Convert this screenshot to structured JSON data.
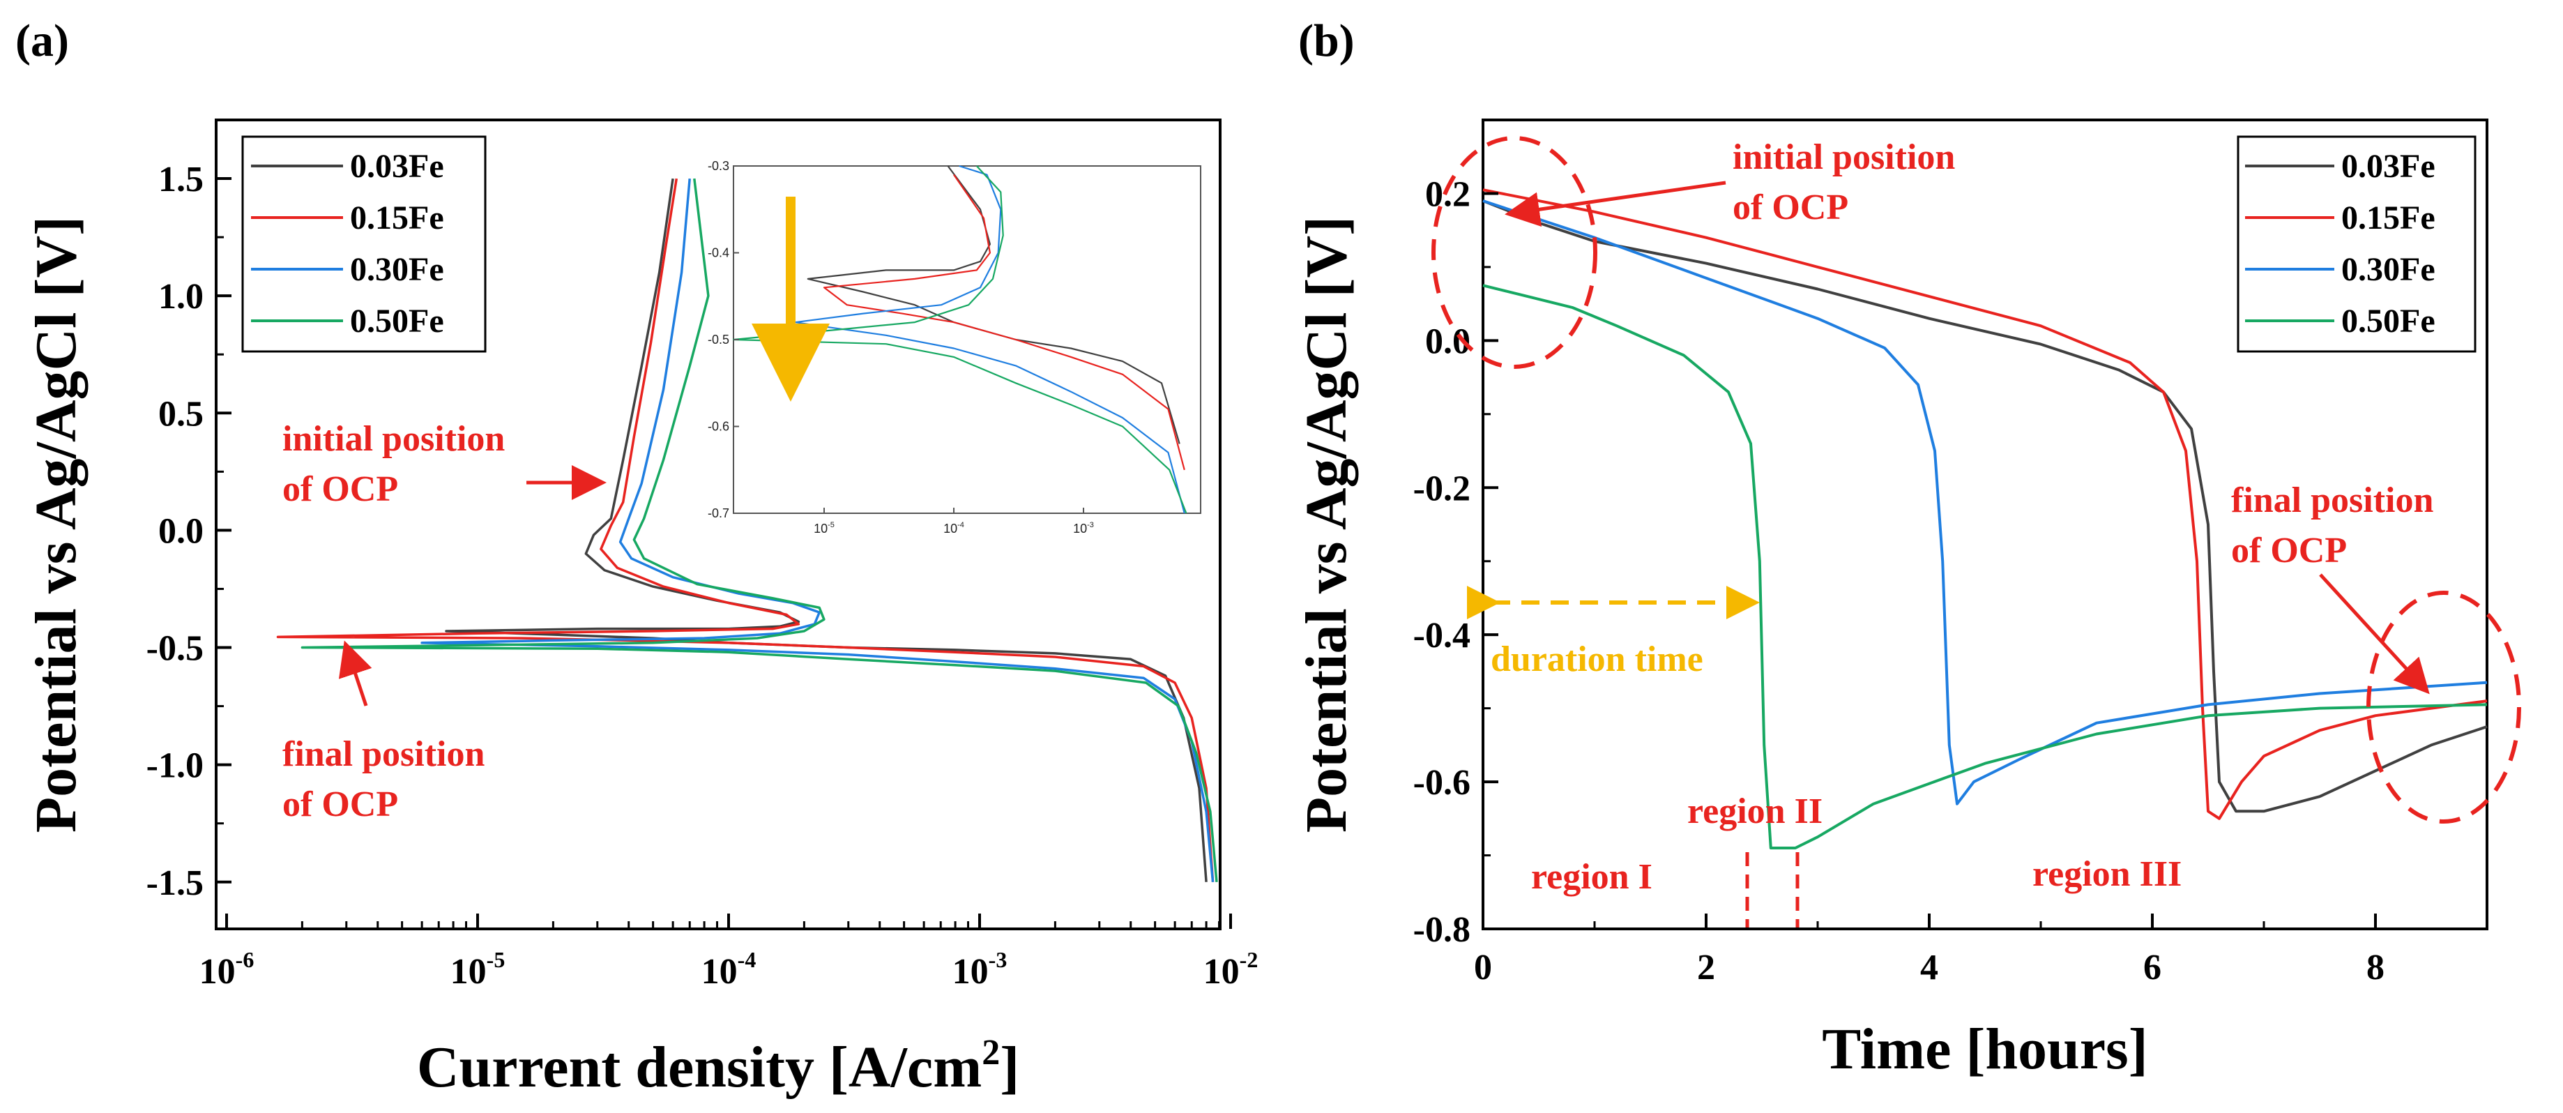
{
  "chart_data": [
    {
      "panel": "(a)",
      "type": "line",
      "xlabel": "Current density [A/cm2]",
      "ylabel": "Potential vs Ag/AgCl [V]",
      "xscale": "log",
      "xlim": [
        1e-06,
        0.01
      ],
      "ylim": [
        -1.7,
        1.75
      ],
      "x_ticks": [
        "10-6",
        "10-5",
        "10-4",
        "10-3",
        "10-2"
      ],
      "y_ticks": [
        "1.5",
        "1.0",
        "0.5",
        "0.0",
        "-0.5",
        "-1.0",
        "-1.5"
      ],
      "legend_placement": "top-left",
      "series": [
        {
          "name": "0.03Fe",
          "color": "#404040",
          "points": [
            [
              0.008,
              -1.5
            ],
            [
              0.0075,
              -1.1
            ],
            [
              0.0065,
              -0.8
            ],
            [
              0.0055,
              -0.62
            ],
            [
              0.004,
              -0.55
            ],
            [
              0.002,
              -0.525
            ],
            [
              0.0008,
              -0.51
            ],
            [
              0.0003,
              -0.5
            ],
            [
              0.0001,
              -0.48
            ],
            [
              5e-05,
              -0.46
            ],
            [
              2e-05,
              -0.445
            ],
            [
              7.5e-06,
              -0.43
            ],
            [
              3e-05,
              -0.42
            ],
            [
              0.0001,
              -0.42
            ],
            [
              0.00016,
              -0.41
            ],
            [
              0.00019,
              -0.39
            ],
            [
              0.00016,
              -0.35
            ],
            [
              9e-05,
              -0.3
            ],
            [
              5e-05,
              -0.24
            ],
            [
              3.2e-05,
              -0.17
            ],
            [
              2.7e-05,
              -0.1
            ],
            [
              2.9e-05,
              -0.02
            ],
            [
              3.4e-05,
              0.05
            ],
            [
              3.8e-05,
              0.3
            ],
            [
              4.5e-05,
              0.7
            ],
            [
              5.3e-05,
              1.1
            ],
            [
              6e-05,
              1.5
            ]
          ]
        },
        {
          "name": "0.15Fe",
          "color": "#e8231f",
          "points": [
            [
              0.0085,
              -1.5
            ],
            [
              0.008,
              -1.1
            ],
            [
              0.007,
              -0.8
            ],
            [
              0.006,
              -0.65
            ],
            [
              0.0045,
              -0.58
            ],
            [
              0.002,
              -0.54
            ],
            [
              0.0008,
              -0.52
            ],
            [
              0.0003,
              -0.5
            ],
            [
              0.0001,
              -0.48
            ],
            [
              4e-05,
              -0.47
            ],
            [
              1.5e-05,
              -0.46
            ],
            [
              1.6e-06,
              -0.455
            ],
            [
              1e-05,
              -0.44
            ],
            [
              5e-05,
              -0.43
            ],
            [
              0.00015,
              -0.42
            ],
            [
              0.00019,
              -0.4
            ],
            [
              0.00017,
              -0.36
            ],
            [
              0.0001,
              -0.31
            ],
            [
              5.5e-05,
              -0.24
            ],
            [
              3.6e-05,
              -0.16
            ],
            [
              3.1e-05,
              -0.08
            ],
            [
              3.4e-05,
              0.02
            ],
            [
              3.8e-05,
              0.12
            ],
            [
              4.2e-05,
              0.4
            ],
            [
              4.9e-05,
              0.8
            ],
            [
              5.6e-05,
              1.2
            ],
            [
              6.2e-05,
              1.5
            ]
          ]
        },
        {
          "name": "0.30Fe",
          "color": "#1f7ee0",
          "points": [
            [
              0.0085,
              -1.5
            ],
            [
              0.008,
              -1.2
            ],
            [
              0.007,
              -0.9
            ],
            [
              0.006,
              -0.72
            ],
            [
              0.0045,
              -0.63
            ],
            [
              0.002,
              -0.59
            ],
            [
              0.0008,
              -0.56
            ],
            [
              0.0003,
              -0.53
            ],
            [
              0.0001,
              -0.51
            ],
            [
              3e-05,
              -0.495
            ],
            [
              1e-05,
              -0.485
            ],
            [
              6e-06,
              -0.48
            ],
            [
              2e-05,
              -0.47
            ],
            [
              8e-05,
              -0.46
            ],
            [
              0.00016,
              -0.44
            ],
            [
              0.00022,
              -0.4
            ],
            [
              0.00023,
              -0.35
            ],
            [
              0.00018,
              -0.31
            ],
            [
              0.00011,
              -0.27
            ],
            [
              6e-05,
              -0.2
            ],
            [
              4.1e-05,
              -0.12
            ],
            [
              3.7e-05,
              -0.05
            ],
            [
              4e-05,
              0.05
            ],
            [
              4.5e-05,
              0.2
            ],
            [
              5.5e-05,
              0.6
            ],
            [
              6.5e-05,
              1.1
            ],
            [
              7e-05,
              1.5
            ]
          ]
        },
        {
          "name": "0.50Fe",
          "color": "#17a862",
          "points": [
            [
              0.0088,
              -1.5
            ],
            [
              0.0083,
              -1.2
            ],
            [
              0.0073,
              -0.95
            ],
            [
              0.0062,
              -0.75
            ],
            [
              0.0046,
              -0.65
            ],
            [
              0.002,
              -0.6
            ],
            [
              0.0008,
              -0.575
            ],
            [
              0.0003,
              -0.55
            ],
            [
              0.0001,
              -0.52
            ],
            [
              3e-05,
              -0.505
            ],
            [
              2e-06,
              -0.5
            ],
            [
              1e-05,
              -0.49
            ],
            [
              5e-05,
              -0.48
            ],
            [
              0.00013,
              -0.46
            ],
            [
              0.0002,
              -0.43
            ],
            [
              0.00024,
              -0.38
            ],
            [
              0.00023,
              -0.33
            ],
            [
              0.00015,
              -0.29
            ],
            [
              7.5e-05,
              -0.23
            ],
            [
              4.6e-05,
              -0.12
            ],
            [
              4.2e-05,
              -0.04
            ],
            [
              4.6e-05,
              0.05
            ],
            [
              5.5e-05,
              0.3
            ],
            [
              7e-05,
              0.7
            ],
            [
              8.3e-05,
              1.0
            ],
            [
              7.3e-05,
              1.5
            ]
          ]
        }
      ],
      "annotations": [
        "initial position",
        "of OCP",
        "final position",
        "of OCP"
      ],
      "inset": {
        "xscale": "log",
        "xlim": [
          2e-06,
          0.008
        ],
        "ylim": [
          -0.7,
          -0.3
        ],
        "x_ticks": [
          "10-5",
          "10-4",
          "10-3"
        ],
        "y_ticks": [
          "-0.3",
          "-0.4",
          "-0.5",
          "-0.6",
          "-0.7"
        ]
      }
    },
    {
      "panel": "(b)",
      "type": "line",
      "xlabel": "Time [hours]",
      "ylabel": "Potential vs Ag/AgCl [V]",
      "xlim": [
        0,
        9
      ],
      "ylim": [
        -0.8,
        0.3
      ],
      "x_ticks": [
        "0",
        "2",
        "4",
        "6",
        "8"
      ],
      "y_ticks": [
        "0.2",
        "0.0",
        "-0.2",
        "-0.4",
        "-0.6",
        "-0.8"
      ],
      "legend_placement": "top-right",
      "series": [
        {
          "name": "0.03Fe",
          "color": "#404040",
          "points": [
            [
              0,
              0.19
            ],
            [
              0.5,
              0.16
            ],
            [
              1,
              0.135
            ],
            [
              2,
              0.105
            ],
            [
              3,
              0.07
            ],
            [
              4,
              0.03
            ],
            [
              5,
              -0.005
            ],
            [
              5.7,
              -0.04
            ],
            [
              6.1,
              -0.07
            ],
            [
              6.35,
              -0.12
            ],
            [
              6.5,
              -0.25
            ],
            [
              6.55,
              -0.45
            ],
            [
              6.6,
              -0.6
            ],
            [
              6.75,
              -0.64
            ],
            [
              7,
              -0.64
            ],
            [
              7.5,
              -0.62
            ],
            [
              8,
              -0.585
            ],
            [
              8.5,
              -0.55
            ],
            [
              9,
              -0.525
            ]
          ]
        },
        {
          "name": "0.15Fe",
          "color": "#e8231f",
          "points": [
            [
              0,
              0.205
            ],
            [
              1,
              0.175
            ],
            [
              2,
              0.14
            ],
            [
              3,
              0.1
            ],
            [
              4,
              0.06
            ],
            [
              5,
              0.02
            ],
            [
              5.8,
              -0.03
            ],
            [
              6.1,
              -0.07
            ],
            [
              6.3,
              -0.15
            ],
            [
              6.4,
              -0.3
            ],
            [
              6.45,
              -0.5
            ],
            [
              6.5,
              -0.64
            ],
            [
              6.6,
              -0.65
            ],
            [
              6.8,
              -0.6
            ],
            [
              7,
              -0.565
            ],
            [
              7.5,
              -0.53
            ],
            [
              8,
              -0.51
            ],
            [
              9,
              -0.49
            ]
          ]
        },
        {
          "name": "0.30Fe",
          "color": "#1f7ee0",
          "points": [
            [
              0,
              0.19
            ],
            [
              0.5,
              0.165
            ],
            [
              1,
              0.14
            ],
            [
              2,
              0.085
            ],
            [
              3,
              0.03
            ],
            [
              3.6,
              -0.01
            ],
            [
              3.9,
              -0.06
            ],
            [
              4.05,
              -0.15
            ],
            [
              4.12,
              -0.3
            ],
            [
              4.18,
              -0.55
            ],
            [
              4.25,
              -0.63
            ],
            [
              4.4,
              -0.6
            ],
            [
              4.8,
              -0.57
            ],
            [
              5.5,
              -0.52
            ],
            [
              6.5,
              -0.495
            ],
            [
              7.5,
              -0.48
            ],
            [
              9,
              -0.465
            ]
          ]
        },
        {
          "name": "0.50Fe",
          "color": "#17a862",
          "points": [
            [
              0,
              0.075
            ],
            [
              0.4,
              0.06
            ],
            [
              0.8,
              0.045
            ],
            [
              1.2,
              0.02
            ],
            [
              1.8,
              -0.02
            ],
            [
              2.2,
              -0.07
            ],
            [
              2.4,
              -0.14
            ],
            [
              2.48,
              -0.3
            ],
            [
              2.52,
              -0.55
            ],
            [
              2.58,
              -0.69
            ],
            [
              2.8,
              -0.69
            ],
            [
              3,
              -0.675
            ],
            [
              3.5,
              -0.63
            ],
            [
              4.5,
              -0.575
            ],
            [
              5.5,
              -0.535
            ],
            [
              6.5,
              -0.51
            ],
            [
              7.5,
              -0.5
            ],
            [
              9,
              -0.495
            ]
          ]
        }
      ],
      "annotations": [
        "initial position",
        "of OCP",
        "final position",
        "of OCP",
        "duration time",
        "region I",
        "region II",
        "region III"
      ]
    }
  ]
}
